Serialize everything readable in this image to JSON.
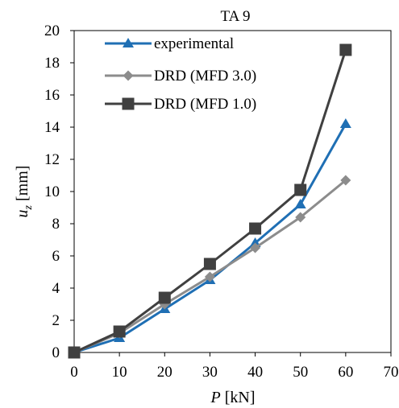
{
  "chart_data": {
    "type": "line",
    "title": "TA 9",
    "xlabel_var": "P",
    "xlabel_unit": " [kN]",
    "ylabel_var": "u",
    "ylabel_sub": "z",
    "ylabel_unit": " [mm]",
    "xlim": [
      0,
      70
    ],
    "ylim": [
      0,
      20
    ],
    "xticks": [
      0,
      10,
      20,
      30,
      40,
      50,
      60,
      70
    ],
    "yticks": [
      0,
      2,
      4,
      6,
      8,
      10,
      12,
      14,
      16,
      18,
      20
    ],
    "grid": false,
    "legend_position": "top-left",
    "series": [
      {
        "name": "experimental",
        "color": "#1F6FB4",
        "marker": "triangle",
        "x": [
          0,
          10,
          20,
          30,
          40,
          50,
          60
        ],
        "y": [
          0,
          0.9,
          2.7,
          4.5,
          6.8,
          9.2,
          14.2
        ]
      },
      {
        "name": "DRD (MFD 3.0)",
        "color": "#8C8C8C",
        "marker": "diamond",
        "x": [
          0,
          10,
          20,
          30,
          40,
          50,
          60
        ],
        "y": [
          0,
          1.2,
          3.0,
          4.7,
          6.5,
          8.4,
          10.7
        ]
      },
      {
        "name": "DRD (MFD 1.0)",
        "color": "#404040",
        "marker": "square",
        "x": [
          0,
          10,
          20,
          30,
          40,
          50,
          60
        ],
        "y": [
          0,
          1.3,
          3.4,
          5.5,
          7.7,
          10.1,
          18.8
        ]
      }
    ]
  }
}
